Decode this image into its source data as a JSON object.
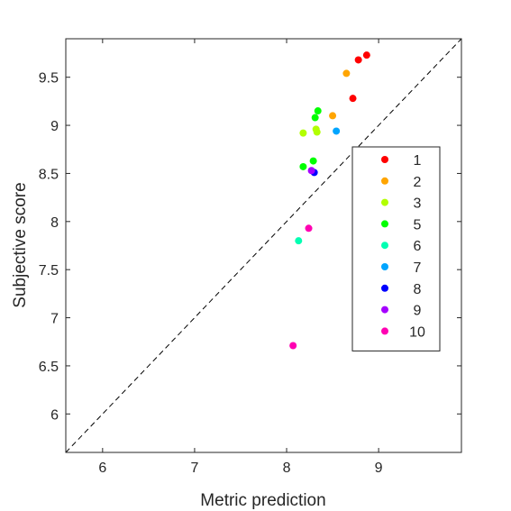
{
  "chart_data": {
    "type": "scatter",
    "xlabel": "Metric prediction",
    "ylabel": "Subjective score",
    "xlim": [
      5.6,
      9.9
    ],
    "ylim": [
      5.6,
      9.9
    ],
    "x_ticks": [
      "6",
      "7",
      "8",
      "9"
    ],
    "y_ticks": [
      "6",
      "6.5",
      "7",
      "7.5",
      "8",
      "8.5",
      "9",
      "9.5"
    ],
    "x_tick_values": [
      6,
      7,
      8,
      9
    ],
    "y_tick_values": [
      6,
      6.5,
      7,
      7.5,
      8,
      8.5,
      9,
      9.5
    ],
    "reference_line": "y = x (dashed)",
    "grid": false,
    "legend_position": "right",
    "series": [
      {
        "name": "1",
        "color": "#ff0000",
        "points": [
          [
            8.87,
            9.73
          ],
          [
            8.78,
            9.68
          ],
          [
            8.72,
            9.28
          ]
        ]
      },
      {
        "name": "2",
        "color": "#ffa500",
        "points": [
          [
            8.65,
            9.54
          ],
          [
            8.5,
            9.1
          ]
        ]
      },
      {
        "name": "3",
        "color": "#b2ff00",
        "points": [
          [
            8.18,
            8.92
          ],
          [
            8.32,
            8.96
          ],
          [
            8.33,
            8.93
          ]
        ]
      },
      {
        "name": "5",
        "color": "#00ff00",
        "points": [
          [
            8.34,
            9.15
          ],
          [
            8.31,
            9.08
          ],
          [
            8.18,
            8.57
          ],
          [
            8.29,
            8.63
          ]
        ]
      },
      {
        "name": "6",
        "color": "#00ffb2",
        "points": [
          [
            8.13,
            7.8
          ]
        ]
      },
      {
        "name": "7",
        "color": "#00a5ff",
        "points": [
          [
            8.54,
            8.94
          ]
        ]
      },
      {
        "name": "8",
        "color": "#0000ff",
        "points": [
          [
            8.3,
            8.51
          ]
        ]
      },
      {
        "name": "9",
        "color": "#a500ff",
        "points": [
          [
            8.27,
            8.53
          ]
        ]
      },
      {
        "name": "10",
        "color": "#ff00b2",
        "points": [
          [
            8.24,
            7.93
          ],
          [
            8.07,
            6.71
          ]
        ]
      }
    ]
  }
}
